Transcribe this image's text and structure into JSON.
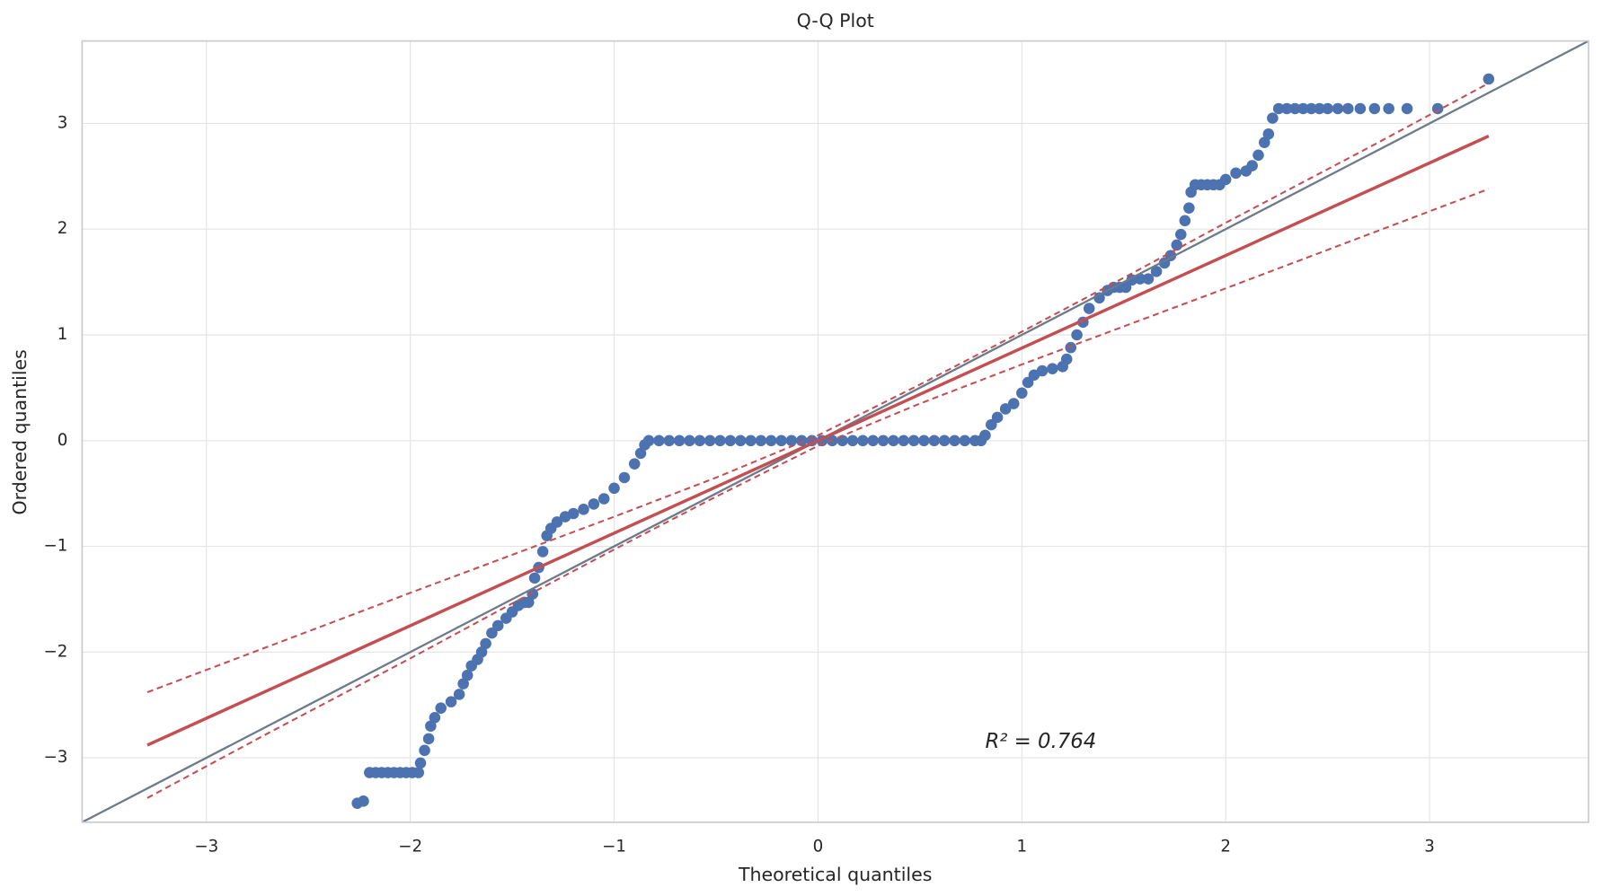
{
  "chart_data": {
    "type": "scatter",
    "title": "Q-Q Plot",
    "x_label": "Theoretical quantiles",
    "y_label": "Ordered quantiles",
    "xlim": [
      -3.61,
      3.78
    ],
    "ylim": [
      -3.61,
      3.78
    ],
    "xticks": [
      {
        "value": -3,
        "label": "−3"
      },
      {
        "value": -2,
        "label": "−2"
      },
      {
        "value": -1,
        "label": "−1"
      },
      0,
      1,
      2,
      3
    ],
    "yticks": [
      {
        "value": -3,
        "label": "−3"
      },
      {
        "value": -2,
        "label": "−2"
      },
      {
        "value": -1,
        "label": "−1"
      },
      0,
      1,
      2,
      3
    ],
    "grid": true,
    "annotation": {
      "text": "R² = 0.764",
      "x": 0.82,
      "y": -2.85
    },
    "series": [
      {
        "color": "#4c72b0",
        "x": [
          -2.26,
          -2.23,
          -2.2,
          -2.17,
          -2.14,
          -2.11,
          -2.08,
          -2.05,
          -2.02,
          -1.99,
          -1.96,
          -1.95,
          -1.93,
          -1.91,
          -1.9,
          -1.88,
          -1.85,
          -1.8,
          -1.76,
          -1.74,
          -1.72,
          -1.7,
          -1.67,
          -1.65,
          -1.63,
          -1.6,
          -1.57,
          -1.53,
          -1.5,
          -1.47,
          -1.44,
          -1.42,
          -1.4,
          -1.39,
          -1.37,
          -1.35,
          -1.33,
          -1.31,
          -1.28,
          -1.24,
          -1.2,
          -1.15,
          -1.1,
          -1.05,
          -1.0,
          -0.95,
          -0.9,
          -0.87,
          -0.85,
          -0.83,
          -0.78,
          -0.73,
          -0.68,
          -0.63,
          -0.58,
          -0.53,
          -0.48,
          -0.43,
          -0.38,
          -0.33,
          -0.28,
          -0.23,
          -0.18,
          -0.13,
          -0.08,
          -0.03,
          0.02,
          0.07,
          0.12,
          0.17,
          0.22,
          0.27,
          0.32,
          0.37,
          0.42,
          0.47,
          0.52,
          0.57,
          0.62,
          0.67,
          0.72,
          0.77,
          0.8,
          0.82,
          0.85,
          0.88,
          0.92,
          0.96,
          1.0,
          1.03,
          1.06,
          1.1,
          1.15,
          1.2,
          1.22,
          1.24,
          1.27,
          1.3,
          1.33,
          1.38,
          1.42,
          1.45,
          1.48,
          1.51,
          1.54,
          1.58,
          1.62,
          1.66,
          1.7,
          1.73,
          1.76,
          1.78,
          1.8,
          1.82,
          1.83,
          1.85,
          1.88,
          1.91,
          1.94,
          1.97,
          2.0,
          2.05,
          2.1,
          2.13,
          2.16,
          2.19,
          2.21,
          2.23,
          2.26,
          2.3,
          2.34,
          2.38,
          2.42,
          2.46,
          2.5,
          2.55,
          2.6,
          2.66,
          2.73,
          2.8,
          2.89,
          3.04,
          3.29
        ],
        "values": [
          -3.43,
          -3.41,
          -3.14,
          -3.14,
          -3.14,
          -3.14,
          -3.14,
          -3.14,
          -3.14,
          -3.14,
          -3.14,
          -3.05,
          -2.93,
          -2.82,
          -2.7,
          -2.62,
          -2.53,
          -2.47,
          -2.4,
          -2.3,
          -2.22,
          -2.13,
          -2.07,
          -2.0,
          -1.92,
          -1.82,
          -1.75,
          -1.68,
          -1.62,
          -1.56,
          -1.53,
          -1.53,
          -1.45,
          -1.3,
          -1.2,
          -1.05,
          -0.9,
          -0.83,
          -0.77,
          -0.72,
          -0.69,
          -0.65,
          -0.6,
          -0.55,
          -0.45,
          -0.35,
          -0.22,
          -0.12,
          -0.04,
          0,
          0,
          0,
          0,
          0,
          0,
          0,
          0,
          0,
          0,
          0,
          0,
          0,
          0,
          0,
          0,
          0,
          0,
          0,
          0,
          0,
          0,
          0,
          0,
          0,
          0,
          0,
          0,
          0,
          0,
          0,
          0,
          0,
          0,
          0.05,
          0.15,
          0.22,
          0.3,
          0.35,
          0.45,
          0.55,
          0.62,
          0.66,
          0.68,
          0.7,
          0.77,
          0.88,
          1.0,
          1.12,
          1.25,
          1.35,
          1.42,
          1.45,
          1.45,
          1.45,
          1.52,
          1.53,
          1.53,
          1.6,
          1.68,
          1.75,
          1.85,
          1.95,
          2.08,
          2.2,
          2.35,
          2.42,
          2.42,
          2.42,
          2.42,
          2.42,
          2.47,
          2.53,
          2.55,
          2.6,
          2.7,
          2.82,
          2.9,
          3.05,
          3.14,
          3.14,
          3.14,
          3.14,
          3.14,
          3.14,
          3.14,
          3.14,
          3.14,
          3.14,
          3.14,
          3.14,
          3.14,
          3.14,
          3.42
        ]
      }
    ],
    "lines": [
      {
        "color": "#6c7a89",
        "style": "solid",
        "x": [
          -3.61,
          3.78
        ],
        "values": [
          -3.61,
          3.78
        ]
      },
      {
        "color": "#c44e52",
        "style": "solid",
        "x": [
          -3.29,
          3.29
        ],
        "values": [
          -2.88,
          2.88
        ]
      },
      {
        "color": "#c44e52",
        "style": "dashed",
        "x": [
          -3.29,
          -2.7,
          -2,
          -1.5,
          -1,
          -0.5,
          0,
          0.5,
          1,
          1.5,
          2,
          2.7,
          3.29
        ],
        "values": [
          -2.38,
          -1.95,
          -1.44,
          -1.08,
          -0.72,
          -0.35,
          0.05,
          0.53,
          1.03,
          1.54,
          2.06,
          2.77,
          3.38
        ]
      },
      {
        "color": "#c44e52",
        "style": "dashed",
        "x": [
          -3.29,
          -2.7,
          -2,
          -1.5,
          -1,
          -0.5,
          0,
          0.5,
          1,
          1.5,
          2,
          2.7,
          3.29
        ],
        "values": [
          -3.38,
          -2.77,
          -2.06,
          -1.54,
          -1.03,
          -0.53,
          -0.05,
          0.35,
          0.72,
          1.08,
          1.44,
          1.95,
          2.38
        ]
      }
    ]
  }
}
